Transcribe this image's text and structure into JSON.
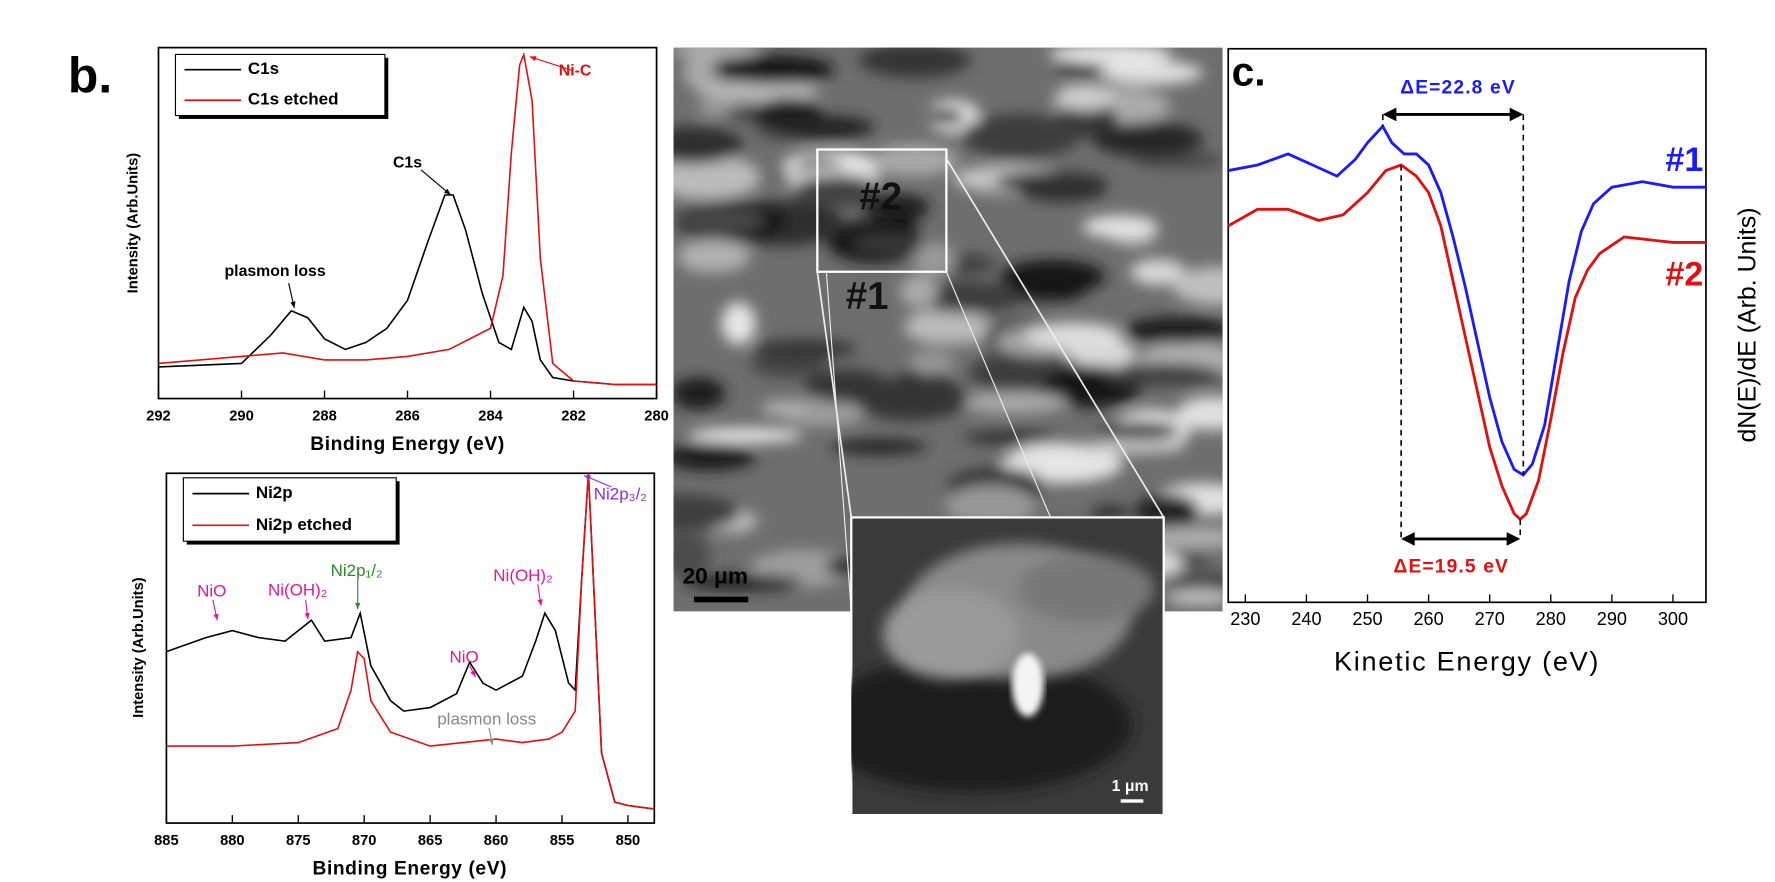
{
  "chart_data": [
    {
      "type": "line",
      "panel_label": "b.",
      "xlabel": "Binding Energy (eV)",
      "ylabel": "Intensity (Arb.Units)",
      "xlim": [
        292,
        280
      ],
      "xticks": [
        292,
        290,
        288,
        286,
        284,
        282,
        280
      ],
      "ylim": [
        0,
        100
      ],
      "legend": "upper left",
      "series": [
        {
          "name": "C1s",
          "color": "#000000",
          "x": [
            292,
            290,
            289.3,
            288.8,
            288.4,
            288,
            287.5,
            287,
            286.5,
            286,
            285.5,
            285.1,
            284.9,
            284.6,
            284.2,
            283.8,
            283.5,
            283.2,
            283,
            282.8,
            282.5,
            282,
            281,
            280
          ],
          "values": [
            9,
            10,
            18,
            25,
            23,
            17,
            14,
            16,
            20,
            28,
            45,
            58,
            58,
            48,
            30,
            16,
            14,
            26,
            22,
            11,
            6,
            5,
            4,
            4
          ]
        },
        {
          "name": "C1s etched",
          "color": "#e01010",
          "x": [
            292,
            290,
            289,
            288,
            287,
            286,
            285,
            284.5,
            284,
            283.7,
            283.5,
            283.3,
            283.2,
            283,
            282.8,
            282.5,
            282,
            281,
            280
          ],
          "values": [
            10,
            12,
            13,
            11,
            11,
            12,
            14,
            17,
            20,
            35,
            70,
            95,
            98,
            85,
            40,
            10,
            5,
            4,
            4
          ]
        }
      ],
      "annotations": [
        {
          "text": "plasmon loss",
          "color": "#000000"
        },
        {
          "text": "C1s",
          "color": "#000000"
        },
        {
          "text": "Ni-C",
          "color": "#e01010"
        }
      ]
    },
    {
      "type": "line",
      "xlabel": "Binding Energy (eV)",
      "ylabel": "Intensity (Arb.Units)",
      "xlim": [
        885,
        848
      ],
      "xticks": [
        885,
        880,
        875,
        870,
        865,
        860,
        855,
        850
      ],
      "ylim": [
        0,
        100
      ],
      "legend": "upper left",
      "series": [
        {
          "name": "Ni2p",
          "color": "#000000",
          "x": [
            885,
            882,
            880,
            878,
            876,
            874,
            873,
            871,
            870.3,
            869.5,
            868,
            867,
            865,
            863,
            862,
            861,
            860,
            858,
            857,
            856.3,
            855.5,
            854.5,
            854,
            853.5,
            853,
            852.5,
            852,
            851,
            850,
            848
          ],
          "values": [
            49,
            53,
            55,
            53,
            52,
            58,
            52,
            53,
            60,
            45,
            35,
            32,
            33,
            37,
            46,
            40,
            38,
            42,
            52,
            60,
            55,
            40,
            38,
            70,
            100,
            60,
            20,
            6,
            5,
            4
          ]
        },
        {
          "name": "Ni2p etched",
          "color": "#e01010",
          "x": [
            885,
            880,
            875,
            872,
            871,
            870.5,
            870,
            869.5,
            868,
            865,
            860,
            858,
            856,
            855,
            854,
            853.5,
            853,
            852.5,
            852,
            851,
            850,
            848
          ],
          "values": [
            22,
            22,
            23,
            27,
            38,
            49,
            47,
            35,
            26,
            22,
            24,
            23,
            24,
            26,
            32,
            70,
            100,
            60,
            20,
            6,
            5,
            4
          ]
        }
      ],
      "annotations": [
        {
          "text": "NiO",
          "color": "#e0179a"
        },
        {
          "text": "Ni(OH)₂",
          "color": "#e0179a"
        },
        {
          "text": "Ni2p₁/₂",
          "color": "#2a8a2a"
        },
        {
          "text": "NiO",
          "color": "#e0179a"
        },
        {
          "text": "Ni(OH)₂",
          "color": "#e0179a"
        },
        {
          "text": "Ni2p₃/₂",
          "color": "#8a2be2"
        },
        {
          "text": "plasmon loss",
          "color": "#888888"
        }
      ]
    },
    {
      "type": "line",
      "panel_label": "c.",
      "xlabel": "Kinetic Energy (eV)",
      "ylabel": "dN(E)/dE (Arb. Units)",
      "xlim": [
        227.2,
        305.4
      ],
      "xticks": [
        230,
        240,
        250,
        260,
        270,
        280,
        290,
        300
      ],
      "ylim": [
        0,
        100
      ],
      "legend": "right",
      "series": [
        {
          "name": "#1",
          "color": "#1a1aff",
          "x": [
            227.2,
            232,
            237,
            241,
            245,
            248,
            250,
            252.5,
            254,
            256,
            258,
            260,
            262,
            264,
            266,
            268,
            270,
            272,
            274,
            275.5,
            277,
            279,
            281,
            283,
            285,
            287,
            290,
            295,
            300,
            305.4
          ],
          "values": [
            78,
            79,
            81,
            79,
            77,
            80,
            83,
            86,
            83,
            81,
            81,
            79,
            74,
            66,
            57,
            47,
            37,
            29,
            24,
            23,
            25,
            32,
            45,
            58,
            67,
            72,
            75,
            76,
            75,
            75
          ]
        },
        {
          "name": "#2",
          "color": "#e01010",
          "x": [
            227.2,
            232,
            237,
            242,
            246,
            250,
            253,
            255.5,
            258,
            260,
            262,
            264,
            266,
            268,
            270,
            272,
            274,
            275,
            276,
            278,
            280,
            282,
            284,
            286,
            288,
            292,
            300,
            305.4
          ],
          "values": [
            68,
            71,
            71,
            69,
            70,
            74,
            78,
            79,
            77,
            74,
            68,
            58,
            48,
            38,
            28,
            21,
            16,
            15,
            16,
            22,
            33,
            45,
            55,
            60,
            63,
            66,
            65,
            65
          ]
        }
      ],
      "annotations": [
        {
          "text": "ΔE=22.8 eV",
          "color": "#1a1aff"
        },
        {
          "text": "ΔE=19.5 eV",
          "color": "#e01010"
        }
      ]
    }
  ],
  "sem_image": {
    "regions": [
      "#2",
      "#1"
    ],
    "scale_bar": "20 μm",
    "inset_scale_bar": "1 μm"
  }
}
